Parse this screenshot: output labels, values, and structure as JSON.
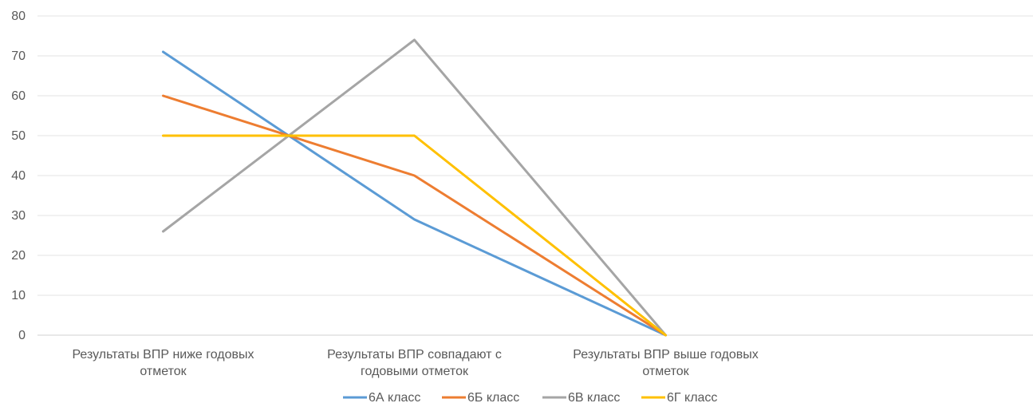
{
  "chart_data": {
    "type": "line",
    "title": "",
    "xlabel": "",
    "ylabel": "",
    "ylim": [
      0,
      80
    ],
    "yticks": [
      0,
      10,
      20,
      30,
      40,
      50,
      60,
      70,
      80
    ],
    "grid": true,
    "legend_position": "bottom",
    "categories": [
      [
        "Результаты ВПР ниже годовых",
        "отметок"
      ],
      [
        "Результаты ВПР совпадают с",
        "годовыми отметок"
      ],
      [
        "Результаты ВПР выше годовых",
        "отметок"
      ]
    ],
    "series": [
      {
        "name": "6А класс",
        "color": "#5B9BD5",
        "values": [
          71,
          29,
          0
        ]
      },
      {
        "name": "6Б класс",
        "color": "#ED7D31",
        "values": [
          60,
          40,
          0
        ]
      },
      {
        "name": "6В класс",
        "color": "#A5A5A5",
        "values": [
          26,
          74,
          0
        ]
      },
      {
        "name": "6Г класс",
        "color": "#FFC000",
        "values": [
          50,
          50,
          0
        ]
      }
    ]
  }
}
